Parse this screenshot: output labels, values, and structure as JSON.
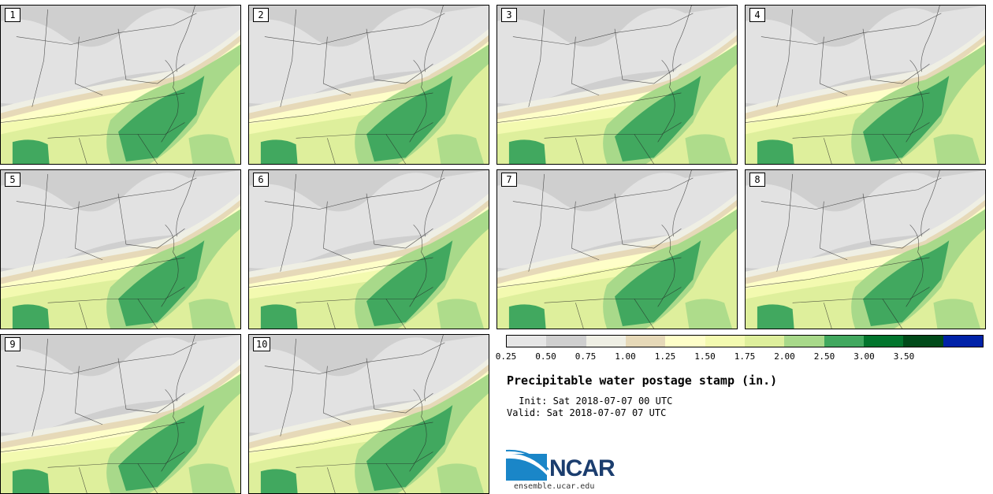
{
  "title": "Precipitable water postage stamp (in.)",
  "init": " Init: Sat 2018-07-07 00 UTC",
  "valid": "Valid: Sat 2018-07-07 07 UTC",
  "legend": {
    "ticks": [
      "0.25",
      "0.50",
      "0.75",
      "1.00",
      "1.25",
      "1.50",
      "1.75",
      "2.00",
      "2.50",
      "3.00",
      "3.50"
    ],
    "colors": [
      "#e6e6e6",
      "#cfcfcf",
      "#efefe4",
      "#e6d9b8",
      "#fefec8",
      "#f3fab0",
      "#deef9c",
      "#a8d98a",
      "#41a85f",
      "#02752d",
      "#004a19",
      "#0022a8"
    ]
  },
  "members": [
    "1",
    "2",
    "3",
    "4",
    "5",
    "6",
    "7",
    "8",
    "9",
    "10"
  ],
  "logo": {
    "text": "NCAR",
    "url": "ensemble.ucar.edu"
  }
}
